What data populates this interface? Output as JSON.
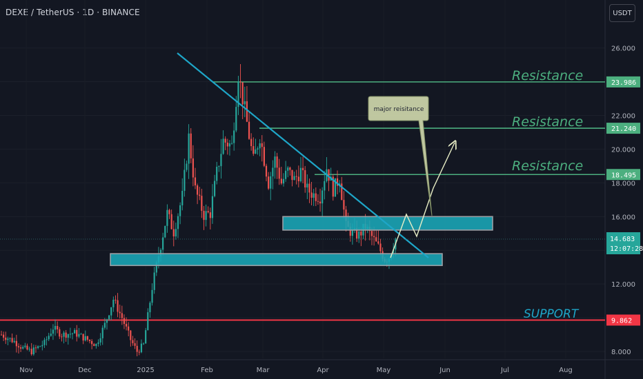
{
  "header": {
    "symbol": "DEXE / TetherUS · 1D · BINANCE",
    "currency_button": "USDT"
  },
  "colors": {
    "background": "#131722",
    "candle_up": "#26a69a",
    "candle_down": "#ef5350",
    "resistance": "#4caf7f",
    "support": "#f23645",
    "zone_fill": "#1aa8b8",
    "trendline": "#1ea6c8",
    "arrow": "#e8eec6",
    "price_tag": "#26a69a"
  },
  "chart_data": {
    "type": "candlestick",
    "y_axis": {
      "ylim": [
        7.6,
        28.3
      ],
      "ticks": [
        "26.000",
        "24.000",
        "22.000",
        "20.000",
        "18.000",
        "16.000",
        "14.000",
        "12.000",
        "10.000",
        "8.000"
      ],
      "tick_values": [
        26,
        24,
        22,
        20,
        18,
        16,
        14,
        12,
        10,
        8
      ]
    },
    "x_axis": {
      "labels": [
        "Nov",
        "Dec",
        "2025",
        "Feb",
        "Mar",
        "Apr",
        "May",
        "Jun",
        "Jul",
        "Aug"
      ]
    },
    "candle_count": 184,
    "close_path": [
      [
        0,
        9.0
      ],
      [
        6,
        8.6
      ],
      [
        10,
        8.2
      ],
      [
        14,
        8.0
      ],
      [
        20,
        8.5
      ],
      [
        24,
        9.4
      ],
      [
        28,
        9.0
      ],
      [
        34,
        9.1
      ],
      [
        40,
        8.7
      ],
      [
        44,
        8.4
      ],
      [
        48,
        9.6
      ],
      [
        52,
        11.1
      ],
      [
        56,
        10.0
      ],
      [
        60,
        8.7
      ],
      [
        63,
        8.0
      ],
      [
        66,
        8.4
      ],
      [
        70,
        11.8
      ],
      [
        73,
        13.7
      ],
      [
        77,
        16.2
      ],
      [
        80,
        15.1
      ],
      [
        84,
        17.2
      ],
      [
        87,
        20.7
      ],
      [
        90,
        17.6
      ],
      [
        94,
        16.1
      ],
      [
        97,
        16.2
      ],
      [
        100,
        18.6
      ],
      [
        103,
        20.5
      ],
      [
        107,
        20.2
      ],
      [
        110,
        24.5
      ],
      [
        113,
        22.3
      ],
      [
        117,
        19.3
      ],
      [
        120,
        20.8
      ],
      [
        124,
        18.0
      ],
      [
        127,
        19.4
      ],
      [
        130,
        18.0
      ],
      [
        133,
        18.7
      ],
      [
        136,
        18.2
      ],
      [
        139,
        18.7
      ],
      [
        142,
        17.6
      ],
      [
        145,
        17.3
      ],
      [
        148,
        17.2
      ],
      [
        151,
        18.9
      ],
      [
        154,
        17.6
      ],
      [
        157,
        18.3
      ],
      [
        160,
        15.4
      ],
      [
        163,
        15.0
      ],
      [
        166,
        14.9
      ],
      [
        169,
        15.4
      ],
      [
        172,
        14.8
      ],
      [
        175,
        14.2
      ],
      [
        178,
        13.5
      ],
      [
        180,
        13.6
      ],
      [
        183,
        14.7
      ]
    ],
    "current_price": {
      "value": "14.683",
      "countdown": "12:07:28"
    },
    "levels": [
      {
        "kind": "resistance",
        "label": "Resistance",
        "value": 23.986,
        "tag": "23.986"
      },
      {
        "kind": "resistance",
        "label": "Resistance",
        "value": 21.24,
        "tag": "21.240"
      },
      {
        "kind": "resistance",
        "label": "Resistance",
        "value": 18.495,
        "tag": "18.495"
      },
      {
        "kind": "support",
        "label": "SUPPORT",
        "value": 9.862,
        "tag": "9.862"
      }
    ],
    "zones": [
      {
        "name": "upper-demand-zone",
        "low": 15.2,
        "high": 16.0
      },
      {
        "name": "lower-demand-zone",
        "low": 13.1,
        "high": 13.8
      }
    ],
    "annotation": {
      "text": "major reisitance"
    }
  }
}
